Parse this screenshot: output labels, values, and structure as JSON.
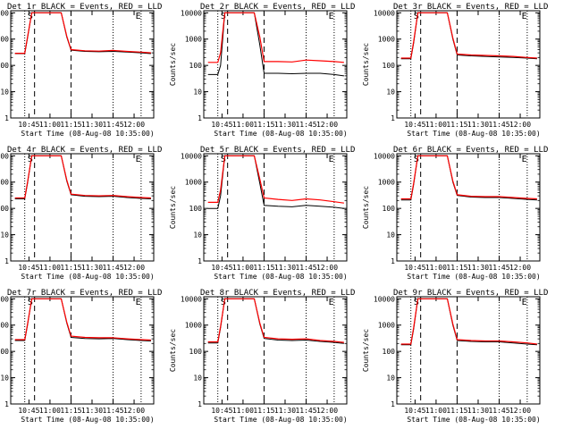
{
  "figure": {
    "x_title": "Start Time (08-Aug-08 10:35:00)",
    "y_title": "Counts/sec",
    "x_ticks": [
      {
        "t": 10,
        "label": "10:45"
      },
      {
        "t": 25,
        "label": "11:00"
      },
      {
        "t": 40,
        "label": "11:15"
      },
      {
        "t": 55,
        "label": "11:30"
      },
      {
        "t": 70,
        "label": "11:45"
      },
      {
        "t": 85,
        "label": "12:00"
      }
    ],
    "y_ticks": [
      {
        "v": 1,
        "label": "1"
      },
      {
        "v": 10,
        "label": "10"
      },
      {
        "v": 100,
        "label": "100"
      },
      {
        "v": 1000,
        "label": "1000"
      },
      {
        "v": 10000,
        "label": "10000"
      }
    ],
    "x_range_minutes": [
      -3,
      99
    ],
    "y_range": [
      1,
      12000
    ],
    "colors": {
      "black_series": "#000000",
      "red_series": "#ff0000",
      "axes": "#000000"
    }
  },
  "chart_data": [
    {
      "type": "line",
      "title": "Det 1r BLACK = Events, RED = LLD",
      "y_scale": "log",
      "x_unit": "minutes since 10:35:00",
      "x": [
        0,
        7,
        9,
        12,
        17,
        25,
        33,
        37,
        40,
        50,
        60,
        70,
        80,
        90,
        97
      ],
      "series": [
        {
          "name": "BLACK = Events",
          "values": [
            280,
            280,
            1100,
            10000,
            10000,
            10000,
            10000,
            1200,
            380,
            340,
            330,
            340,
            320,
            300,
            280
          ]
        },
        {
          "name": "RED = LLD",
          "values": [
            290,
            290,
            1200,
            10000,
            10000,
            10000,
            10000,
            1300,
            400,
            360,
            350,
            370,
            340,
            320,
            300
          ]
        }
      ],
      "markers": {
        "vertical_dotted_minutes": [
          7,
          70,
          90
        ],
        "vertical_dashed_minutes": [
          14,
          40
        ],
        "letter_glyphs": [
          "S",
          "E"
        ]
      }
    },
    {
      "type": "line",
      "title": "Det 2r BLACK = Events, RED = LLD",
      "y_scale": "log",
      "x_unit": "minutes since 10:35:00",
      "x": [
        0,
        7,
        9,
        12,
        17,
        25,
        33,
        37,
        40,
        50,
        60,
        70,
        80,
        90,
        97
      ],
      "series": [
        {
          "name": "BLACK = Events",
          "values": [
            45,
            45,
            100,
            10000,
            10000,
            10000,
            10000,
            600,
            50,
            50,
            48,
            50,
            50,
            45,
            40
          ]
        },
        {
          "name": "RED = LLD",
          "values": [
            130,
            130,
            300,
            10000,
            10000,
            10000,
            10000,
            1200,
            140,
            140,
            135,
            160,
            150,
            140,
            130
          ]
        }
      ],
      "markers": {
        "vertical_dotted_minutes": [
          7,
          70,
          90
        ],
        "vertical_dashed_minutes": [
          14,
          40
        ],
        "letter_glyphs": [
          "S",
          "E"
        ]
      }
    },
    {
      "type": "line",
      "title": "Det 3r BLACK = Events, RED = LLD",
      "y_scale": "log",
      "x_unit": "minutes since 10:35:00",
      "x": [
        0,
        7,
        9,
        12,
        17,
        25,
        33,
        37,
        40,
        50,
        60,
        70,
        80,
        90,
        97
      ],
      "series": [
        {
          "name": "BLACK = Events",
          "values": [
            180,
            180,
            700,
            10000,
            10000,
            10000,
            10000,
            1000,
            250,
            230,
            220,
            210,
            200,
            190,
            180
          ]
        },
        {
          "name": "RED = LLD",
          "values": [
            190,
            190,
            800,
            10000,
            10000,
            10000,
            10000,
            1100,
            270,
            250,
            240,
            230,
            220,
            200,
            190
          ]
        }
      ],
      "markers": {
        "vertical_dotted_minutes": [
          7,
          70,
          90
        ],
        "vertical_dashed_minutes": [
          14,
          40
        ],
        "letter_glyphs": [
          "S",
          "E"
        ]
      }
    },
    {
      "type": "line",
      "title": "Det 4r BLACK = Events, RED = LLD",
      "y_scale": "log",
      "x_unit": "minutes since 10:35:00",
      "x": [
        0,
        7,
        9,
        12,
        17,
        25,
        33,
        37,
        40,
        50,
        60,
        70,
        80,
        90,
        97
      ],
      "series": [
        {
          "name": "BLACK = Events",
          "values": [
            230,
            230,
            900,
            10000,
            10000,
            10000,
            10000,
            1100,
            330,
            290,
            280,
            290,
            260,
            240,
            230
          ]
        },
        {
          "name": "RED = LLD",
          "values": [
            250,
            250,
            1000,
            10000,
            10000,
            10000,
            10000,
            1200,
            350,
            310,
            300,
            310,
            280,
            260,
            250
          ]
        }
      ],
      "markers": {
        "vertical_dotted_minutes": [
          7,
          70,
          90
        ],
        "vertical_dashed_minutes": [
          14,
          40
        ],
        "letter_glyphs": [
          "S",
          "E"
        ]
      }
    },
    {
      "type": "line",
      "title": "Det 5r BLACK = Events, RED = LLD",
      "y_scale": "log",
      "x_unit": "minutes since 10:35:00",
      "x": [
        0,
        7,
        9,
        12,
        17,
        25,
        33,
        37,
        40,
        50,
        60,
        70,
        80,
        90,
        97
      ],
      "series": [
        {
          "name": "BLACK = Events",
          "values": [
            100,
            100,
            300,
            10000,
            10000,
            10000,
            10000,
            900,
            130,
            120,
            115,
            130,
            120,
            110,
            100
          ]
        },
        {
          "name": "RED = LLD",
          "values": [
            170,
            170,
            500,
            10000,
            10000,
            10000,
            10000,
            1300,
            250,
            220,
            200,
            230,
            210,
            180,
            160
          ]
        }
      ],
      "markers": {
        "vertical_dotted_minutes": [
          7,
          70,
          90
        ],
        "vertical_dashed_minutes": [
          14,
          40
        ],
        "letter_glyphs": [
          "S",
          "E"
        ]
      }
    },
    {
      "type": "line",
      "title": "Det 6r BLACK = Events, RED = LLD",
      "y_scale": "log",
      "x_unit": "minutes since 10:35:00",
      "x": [
        0,
        7,
        9,
        12,
        17,
        25,
        33,
        37,
        40,
        50,
        60,
        70,
        80,
        90,
        97
      ],
      "series": [
        {
          "name": "BLACK = Events",
          "values": [
            210,
            210,
            800,
            10000,
            10000,
            10000,
            10000,
            1000,
            310,
            270,
            260,
            260,
            240,
            220,
            210
          ]
        },
        {
          "name": "RED = LLD",
          "values": [
            230,
            230,
            900,
            10000,
            10000,
            10000,
            10000,
            1100,
            330,
            290,
            280,
            280,
            260,
            240,
            230
          ]
        }
      ],
      "markers": {
        "vertical_dotted_minutes": [
          7,
          70,
          90
        ],
        "vertical_dashed_minutes": [
          14,
          40
        ],
        "letter_glyphs": [
          "S",
          "E"
        ]
      }
    },
    {
      "type": "line",
      "title": "Det 7r BLACK = Events, RED = LLD",
      "y_scale": "log",
      "x_unit": "minutes since 10:35:00",
      "x": [
        0,
        7,
        9,
        12,
        17,
        25,
        33,
        37,
        40,
        50,
        60,
        70,
        80,
        90,
        97
      ],
      "series": [
        {
          "name": "BLACK = Events",
          "values": [
            260,
            260,
            1000,
            10000,
            10000,
            10000,
            10000,
            1200,
            340,
            310,
            300,
            310,
            280,
            260,
            250
          ]
        },
        {
          "name": "RED = LLD",
          "values": [
            280,
            280,
            1100,
            10000,
            10000,
            10000,
            10000,
            1300,
            380,
            340,
            330,
            330,
            300,
            280,
            270
          ]
        }
      ],
      "markers": {
        "vertical_dotted_minutes": [
          7,
          70,
          90
        ],
        "vertical_dashed_minutes": [
          14,
          40
        ],
        "letter_glyphs": [
          "S",
          "E"
        ]
      }
    },
    {
      "type": "line",
      "title": "Det 8r BLACK = Events, RED = LLD",
      "y_scale": "log",
      "x_unit": "minutes since 10:35:00",
      "x": [
        0,
        7,
        9,
        12,
        17,
        25,
        33,
        37,
        40,
        50,
        60,
        70,
        80,
        90,
        97
      ],
      "series": [
        {
          "name": "BLACK = Events",
          "values": [
            210,
            210,
            800,
            10000,
            10000,
            10000,
            10000,
            1100,
            310,
            270,
            260,
            270,
            240,
            220,
            200
          ]
        },
        {
          "name": "RED = LLD",
          "values": [
            230,
            230,
            900,
            10000,
            10000,
            10000,
            10000,
            1200,
            340,
            300,
            290,
            300,
            260,
            240,
            220
          ]
        }
      ],
      "markers": {
        "vertical_dotted_minutes": [
          7,
          70,
          90
        ],
        "vertical_dashed_minutes": [
          14,
          40
        ],
        "letter_glyphs": [
          "S",
          "E"
        ]
      }
    },
    {
      "type": "line",
      "title": "Det 9r BLACK = Events, RED = LLD",
      "y_scale": "log",
      "x_unit": "minutes since 10:35:00",
      "x": [
        0,
        7,
        9,
        12,
        17,
        25,
        33,
        37,
        40,
        50,
        60,
        70,
        80,
        90,
        97
      ],
      "series": [
        {
          "name": "BLACK = Events",
          "values": [
            180,
            180,
            700,
            10000,
            10000,
            10000,
            10000,
            1000,
            260,
            240,
            230,
            230,
            210,
            190,
            180
          ]
        },
        {
          "name": "RED = LLD",
          "values": [
            190,
            190,
            800,
            10000,
            10000,
            10000,
            10000,
            1100,
            280,
            260,
            250,
            250,
            230,
            210,
            190
          ]
        }
      ],
      "markers": {
        "vertical_dotted_minutes": [
          7,
          70,
          90
        ],
        "vertical_dashed_minutes": [
          14,
          40
        ],
        "letter_glyphs": [
          "S",
          "E"
        ]
      }
    }
  ]
}
